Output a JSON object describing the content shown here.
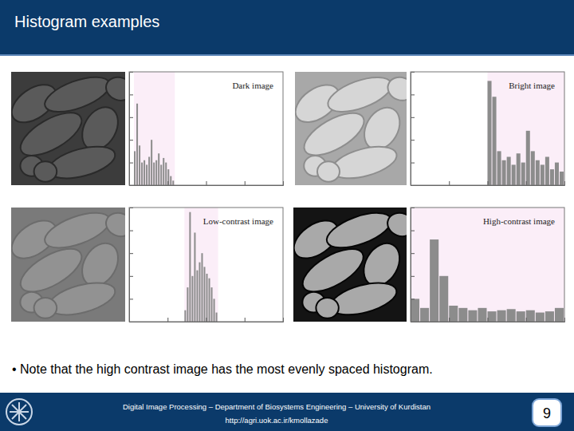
{
  "slide": {
    "title": "Histogram examples",
    "note": "• Note that the high contrast image has the most evenly spaced histogram.",
    "footer": "Digital Image Processing – Department of Biosystems Engineering – University of Kurdistan",
    "url": "http://agri.uok.ac.ir/kmollazade",
    "page": 9
  },
  "chart_data": [
    {
      "type": "histogram",
      "title": "Dark image",
      "bins": [
        8,
        12,
        16,
        20,
        24,
        28,
        32,
        36,
        40,
        44,
        48,
        52,
        56,
        60,
        64,
        68,
        72,
        76
      ],
      "values": [
        30,
        72,
        35,
        20,
        22,
        18,
        25,
        40,
        20,
        22,
        28,
        18,
        24,
        20,
        14,
        8,
        4
      ],
      "color": "#8c8c8c",
      "xlim": [
        0,
        256
      ],
      "xticks": [
        64,
        128,
        192
      ],
      "ylim": [
        0,
        100
      ],
      "yticks": [
        20,
        40,
        60,
        80
      ],
      "tick_labels": false
    },
    {
      "type": "histogram",
      "title": "Bright image",
      "bins": [
        128,
        136,
        144,
        152,
        160,
        168,
        176,
        184,
        192,
        200,
        208,
        216,
        224,
        232,
        240,
        248,
        256
      ],
      "values": [
        92,
        78,
        30,
        22,
        25,
        18,
        28,
        20,
        48,
        30,
        22,
        18,
        25,
        14,
        20,
        12
      ],
      "color": "#8c8c8c",
      "xlim": [
        0,
        256
      ],
      "xticks": [
        64,
        128,
        192
      ],
      "ylim": [
        0,
        100
      ],
      "yticks": [
        20,
        40,
        60,
        80
      ],
      "tick_labels": false
    },
    {
      "type": "histogram",
      "title": "Low-contrast image",
      "bins": [
        92,
        96,
        100,
        104,
        108,
        112,
        116,
        120,
        124,
        128,
        132,
        136,
        140,
        144,
        148
      ],
      "values": [
        10,
        30,
        96,
        40,
        78,
        45,
        52,
        60,
        48,
        42,
        38,
        30,
        20,
        8
      ],
      "color": "#8c8c8c",
      "xlim": [
        0,
        256
      ],
      "xticks": [
        64,
        128,
        192
      ],
      "ylim": [
        0,
        100
      ],
      "yticks": [
        20,
        40,
        60,
        80
      ],
      "tick_labels": false
    },
    {
      "type": "histogram",
      "title": "High-contrast image",
      "bins": [
        0,
        16,
        32,
        48,
        64,
        80,
        96,
        112,
        128,
        144,
        160,
        176,
        192,
        208,
        224,
        240,
        256
      ],
      "values": [
        20,
        12,
        72,
        40,
        14,
        12,
        10,
        12,
        9,
        10,
        11,
        9,
        10,
        8,
        9,
        12
      ],
      "color": "#8c8c8c",
      "xlim": [
        0,
        256
      ],
      "xticks": [
        64,
        128,
        192
      ],
      "ylim": [
        0,
        100
      ],
      "yticks": [
        20,
        40,
        60,
        80
      ],
      "tick_labels": false
    }
  ]
}
